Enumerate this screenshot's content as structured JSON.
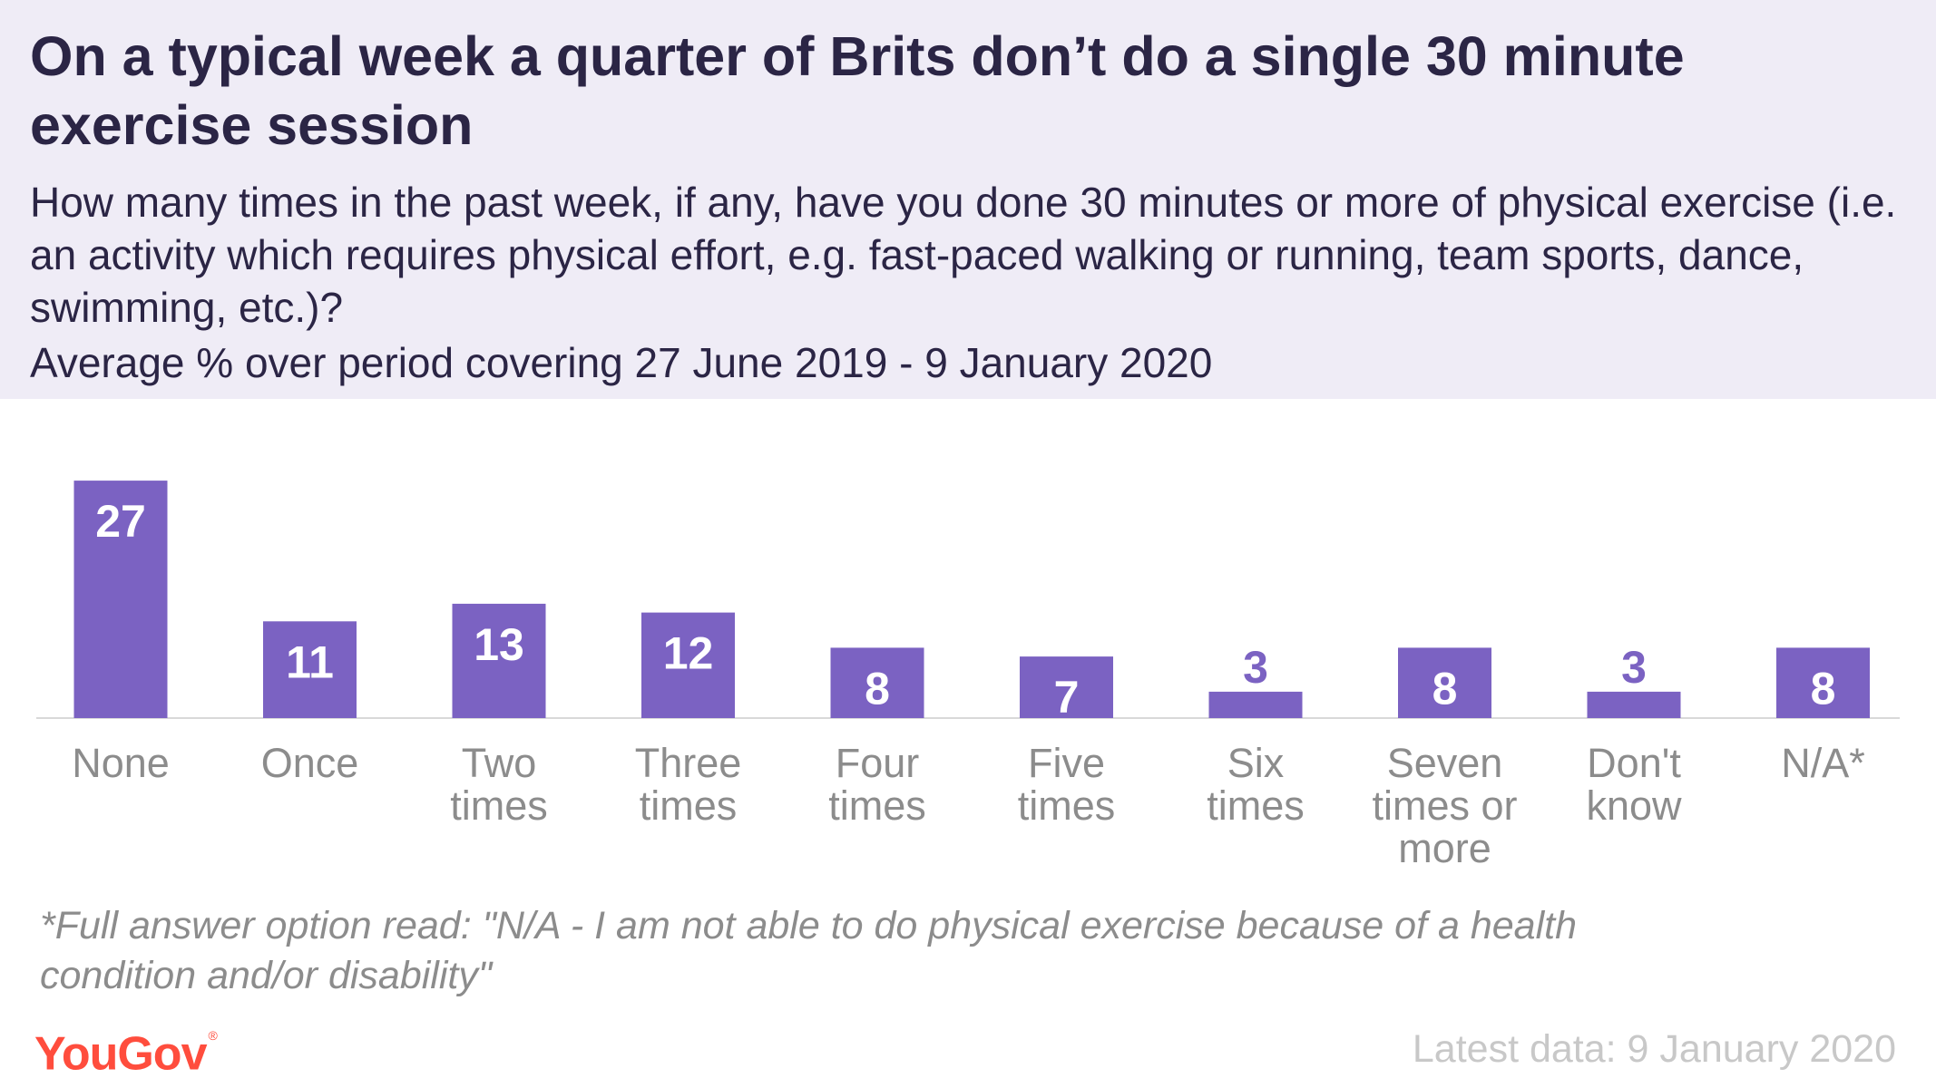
{
  "header": {
    "title": "On a typical week a quarter of Brits don’t do a single 30 minute exercise session",
    "subtitle": "How many times in the past week, if any, have you done 30 minutes or more of physical exercise (i.e. an activity which requires physical effort, e.g. fast-paced walking or running, team sports, dance, swimming, etc.)?",
    "period": "Average % over period covering 27 June 2019 - 9 January 2020"
  },
  "chart_data": {
    "type": "bar",
    "categories": [
      [
        "None"
      ],
      [
        "Once"
      ],
      [
        "Two",
        "times"
      ],
      [
        "Three",
        "times"
      ],
      [
        "Four",
        "times"
      ],
      [
        "Five",
        "times"
      ],
      [
        "Six",
        "times"
      ],
      [
        "Seven",
        "times or",
        "more"
      ],
      [
        "Don't",
        "know"
      ],
      [
        "N/A*"
      ]
    ],
    "values": [
      27,
      11,
      13,
      12,
      8,
      7,
      3,
      8,
      3,
      8
    ],
    "value_labels": [
      "27",
      "11",
      "13",
      "12",
      "8",
      "7",
      "3",
      "8",
      "3",
      "8"
    ],
    "ylim": [
      0,
      30
    ],
    "grid": false,
    "legend": "none",
    "colors": {
      "bar": "#7b62c2",
      "label_inside": "#ffffff",
      "label_outside": "#7b62c2",
      "category_label": "#8c8c8c",
      "baseline": "#d9d9d9"
    }
  },
  "footnote": "*Full answer option read: \"N/A - I am not able to do physical exercise because of a health condition and/or disability\"",
  "footer": {
    "logo_text": "YouGov",
    "logo_mark": "®",
    "latest": "Latest data: 9 January 2020"
  },
  "colors": {
    "header_bg": "#efecf6",
    "title_text": "#2b2545",
    "brand": "#ff4d3d",
    "muted": "#c8c8c8"
  }
}
